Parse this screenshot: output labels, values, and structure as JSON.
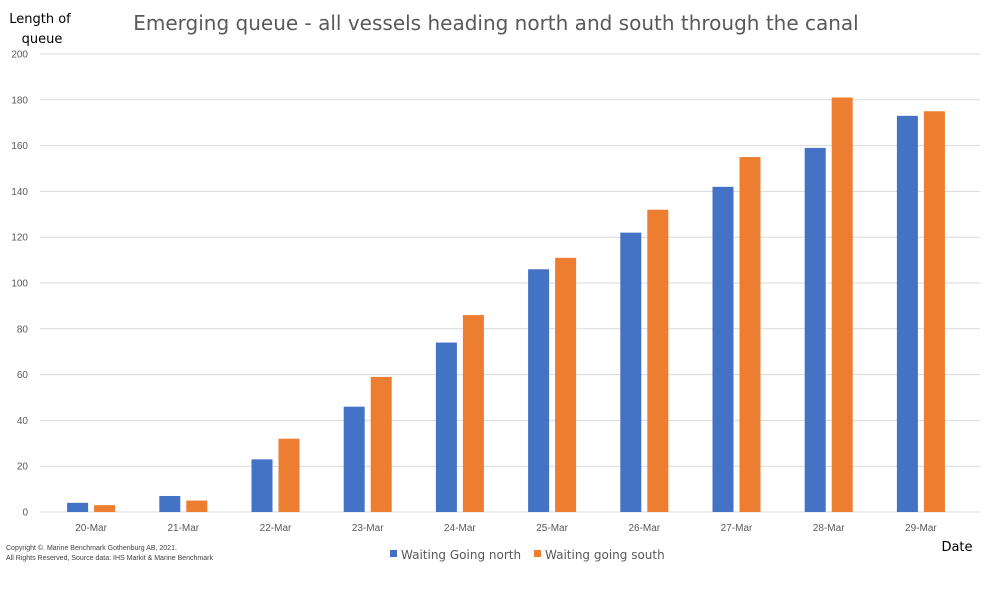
{
  "chart_data": {
    "type": "bar",
    "title": "Emerging queue - all vessels heading north and south through the canal",
    "ylabel_line1": "Length of",
    "ylabel_line2": "queue",
    "xlabel": "Date",
    "categories": [
      "20-Mar",
      "21-Mar",
      "22-Mar",
      "23-Mar",
      "24-Mar",
      "25-Mar",
      "26-Mar",
      "27-Mar",
      "28-Mar",
      "29-Mar"
    ],
    "series": [
      {
        "name": "Waiting Going north",
        "color": "#4472c4",
        "values": [
          4,
          7,
          23,
          46,
          74,
          106,
          122,
          142,
          159,
          173
        ]
      },
      {
        "name": "Waiting going south",
        "color": "#ed7d31",
        "values": [
          3,
          5,
          32,
          59,
          86,
          111,
          132,
          155,
          181,
          175
        ]
      }
    ],
    "ylim": [
      0,
      200
    ],
    "yticks": [
      0,
      20,
      40,
      60,
      80,
      100,
      120,
      140,
      160,
      180,
      200
    ],
    "grid": true,
    "legend_position": "bottom-center",
    "annotation": {
      "line1": "Copyright ©. Marine Benchmark Gothenburg AB, 2021.",
      "line2": "All Rights Reserved, Source data: IHS Markit & Marine Benchmark"
    }
  }
}
